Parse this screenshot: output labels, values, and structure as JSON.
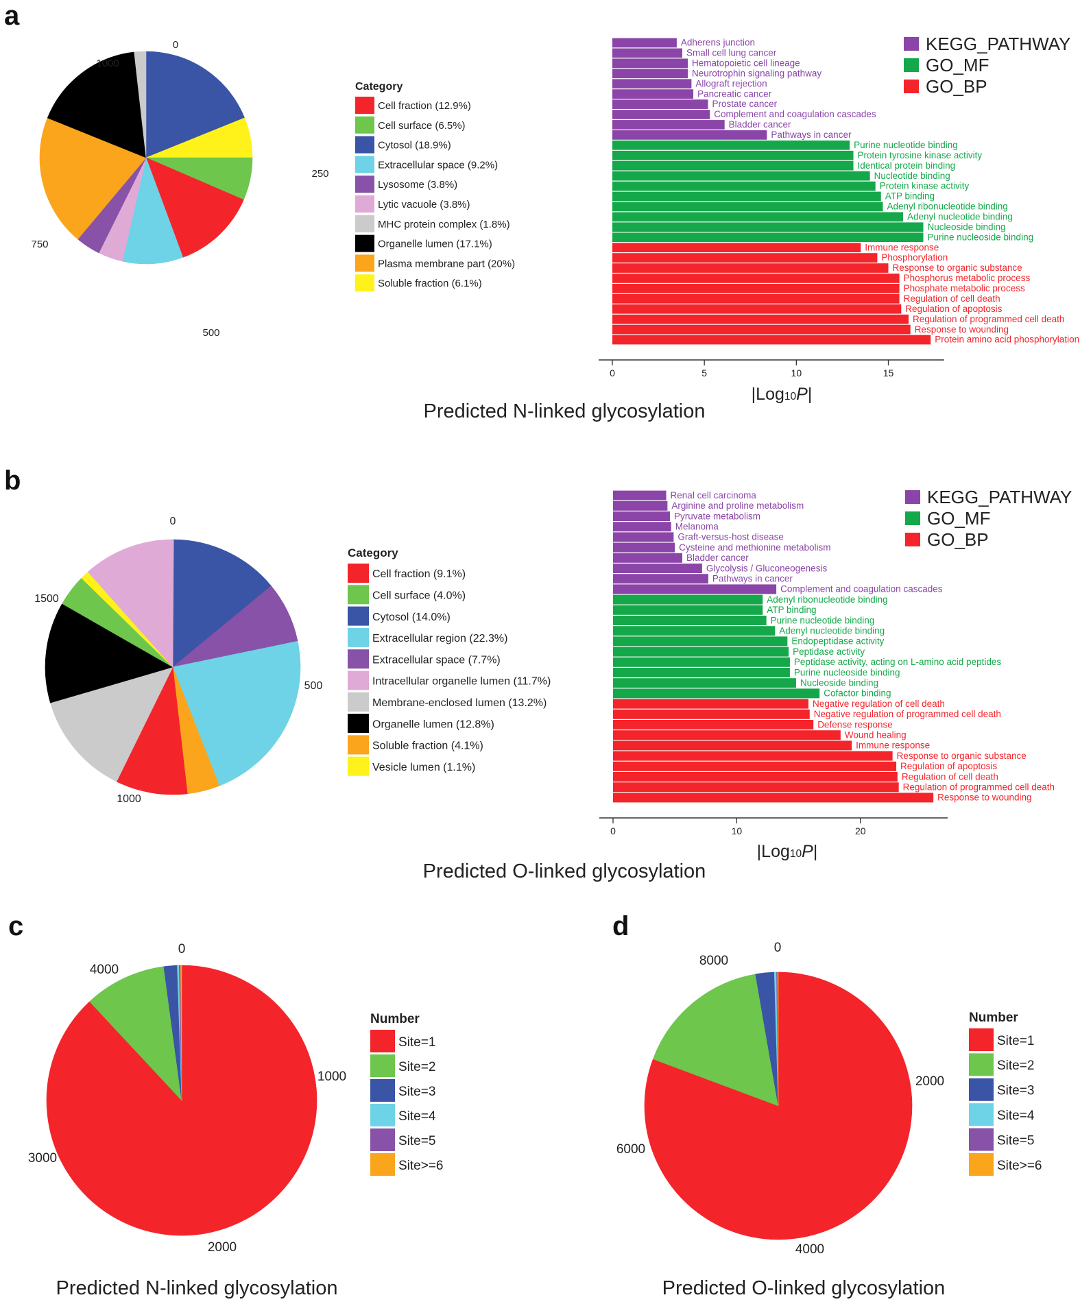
{
  "colors": {
    "red": "#f4242b",
    "green": "#6ec64d",
    "blue": "#3a54a6",
    "cyan": "#6ed3e6",
    "purple": "#8752a8",
    "pink": "#e0aad6",
    "grey": "#cbcbcb",
    "black": "#000000",
    "orange": "#faa51c",
    "yellow": "#fff21b",
    "kegg": "#8b45a8",
    "go_mf": "#15a84a",
    "go_bp": "#f4242b"
  },
  "panel_labels": [
    "a",
    "b",
    "c",
    "d"
  ],
  "series_legend": [
    {
      "name": "KEGG_PATHWAY",
      "color": "#8b45a8"
    },
    {
      "name": "GO_MF",
      "color": "#15a84a"
    },
    {
      "name": "GO_BP",
      "color": "#f4242b"
    }
  ],
  "chart_data": [
    {
      "id": "a-pie",
      "type": "pie",
      "title": "Predicted N-linked glycosylation",
      "legend_title": "Category",
      "axis_max": 1064,
      "tick_labels": [
        {
          "value": 0,
          "label": "0"
        },
        {
          "value": 250,
          "label": "250"
        },
        {
          "value": 500,
          "label": "500"
        },
        {
          "value": 750,
          "label": "750"
        },
        {
          "value": 1000,
          "label": "1000"
        }
      ],
      "slices": [
        {
          "name": "Cytosol (18.9%)",
          "value": 201,
          "color": "#3a54a6"
        },
        {
          "name": "Soluble fraction (6.1%)",
          "value": 65,
          "color": "#fff21b"
        },
        {
          "name": "Cell surface (6.5%)",
          "value": 69,
          "color": "#6ec64d"
        },
        {
          "name": "Cell fraction (12.9%)",
          "value": 137,
          "color": "#f4242b"
        },
        {
          "name": "Extracellular space (9.2%)",
          "value": 98,
          "color": "#6ed3e6"
        },
        {
          "name": "Lytic vacuole (3.8%)",
          "value": 40,
          "color": "#e0aad6"
        },
        {
          "name": "Lysosome (3.8%)",
          "value": 40,
          "color": "#8752a8"
        },
        {
          "name": "Plasma membrane part (20%)",
          "value": 213,
          "color": "#faa51c"
        },
        {
          "name": "Organelle lumen (17.1%)",
          "value": 182,
          "color": "#000000"
        },
        {
          "name": "MHC protein complex (1.8%)",
          "value": 19,
          "color": "#cbcbcb"
        }
      ],
      "legend": [
        {
          "label": "Cell fraction (12.9%)",
          "color": "#f4242b"
        },
        {
          "label": "Cell surface (6.5%)",
          "color": "#6ec64d"
        },
        {
          "label": "Cytosol (18.9%)",
          "color": "#3a54a6"
        },
        {
          "label": "Extracellular space (9.2%)",
          "color": "#6ed3e6"
        },
        {
          "label": "Lysosome (3.8%)",
          "color": "#8752a8"
        },
        {
          "label": "Lytic vacuole (3.8%)",
          "color": "#e0aad6"
        },
        {
          "label": "MHC protein complex (1.8%)",
          "color": "#cbcbcb"
        },
        {
          "label": "Organelle lumen (17.1%)",
          "color": "#000000"
        },
        {
          "label": "Plasma membrane part (20%)",
          "color": "#faa51c"
        },
        {
          "label": "Soluble fraction (6.1%)",
          "color": "#fff21b"
        }
      ]
    },
    {
      "id": "a-bar",
      "type": "bar",
      "orientation": "horizontal",
      "xlabel": "|Log10P|",
      "xlim": [
        0,
        18
      ],
      "xticks": [
        0,
        5,
        10,
        15
      ],
      "bars": [
        {
          "label": "Adherens junction",
          "value": 3.5,
          "group": "KEGG_PATHWAY"
        },
        {
          "label": "Small cell lung cancer",
          "value": 3.8,
          "group": "KEGG_PATHWAY"
        },
        {
          "label": "Hematopoietic cell lineage",
          "value": 4.1,
          "group": "KEGG_PATHWAY"
        },
        {
          "label": "Neurotrophin signaling pathway",
          "value": 4.1,
          "group": "KEGG_PATHWAY"
        },
        {
          "label": "Allograft rejection",
          "value": 4.3,
          "group": "KEGG_PATHWAY"
        },
        {
          "label": "Pancreatic cancer",
          "value": 4.4,
          "group": "KEGG_PATHWAY"
        },
        {
          "label": "Prostate cancer",
          "value": 5.2,
          "group": "KEGG_PATHWAY"
        },
        {
          "label": "Complement and coagulation cascades",
          "value": 5.3,
          "group": "KEGG_PATHWAY"
        },
        {
          "label": "Bladder cancer",
          "value": 6.1,
          "group": "KEGG_PATHWAY"
        },
        {
          "label": "Pathways in cancer",
          "value": 8.4,
          "group": "KEGG_PATHWAY"
        },
        {
          "label": "Purine nucleotide binding",
          "value": 12.9,
          "group": "GO_MF"
        },
        {
          "label": "Protein tyrosine kinase activity",
          "value": 13.1,
          "group": "GO_MF"
        },
        {
          "label": "Identical protein binding",
          "value": 13.1,
          "group": "GO_MF"
        },
        {
          "label": "Nucleotide binding",
          "value": 14.0,
          "group": "GO_MF"
        },
        {
          "label": "Protein kinase activity",
          "value": 14.3,
          "group": "GO_MF"
        },
        {
          "label": "ATP binding",
          "value": 14.6,
          "group": "GO_MF"
        },
        {
          "label": "Adenyl ribonucleotide binding",
          "value": 14.7,
          "group": "GO_MF"
        },
        {
          "label": "Adenyl nucleotide binding",
          "value": 15.8,
          "group": "GO_MF"
        },
        {
          "label": "Nucleoside binding",
          "value": 16.9,
          "group": "GO_MF"
        },
        {
          "label": "Purine nucleoside binding",
          "value": 16.9,
          "group": "GO_MF"
        },
        {
          "label": "Immune response",
          "value": 13.5,
          "group": "GO_BP"
        },
        {
          "label": "Phosphorylation",
          "value": 14.4,
          "group": "GO_BP"
        },
        {
          "label": "Response to organic substance",
          "value": 15.0,
          "group": "GO_BP"
        },
        {
          "label": "Phosphorus metabolic process",
          "value": 15.6,
          "group": "GO_BP"
        },
        {
          "label": "Phosphate metabolic process",
          "value": 15.6,
          "group": "GO_BP"
        },
        {
          "label": "Regulation of cell death",
          "value": 15.6,
          "group": "GO_BP"
        },
        {
          "label": "Regulation of apoptosis",
          "value": 15.7,
          "group": "GO_BP"
        },
        {
          "label": "Regulation of programmed cell death",
          "value": 16.1,
          "group": "GO_BP"
        },
        {
          "label": "Response to wounding",
          "value": 16.2,
          "group": "GO_BP"
        },
        {
          "label": "Protein amino acid phosphorylation",
          "value": 17.3,
          "group": "GO_BP"
        }
      ]
    },
    {
      "id": "b-pie",
      "type": "pie",
      "title": "Predicted O-linked glycosylation",
      "legend_title": "Category",
      "axis_max": 1968,
      "tick_labels": [
        {
          "value": 0,
          "label": "0"
        },
        {
          "value": 500,
          "label": "500"
        },
        {
          "value": 1000,
          "label": "1000"
        },
        {
          "value": 1500,
          "label": "1500"
        }
      ],
      "slices": [
        {
          "name": "Cytosol (14.0%)",
          "value": 276,
          "color": "#3a54a6"
        },
        {
          "name": "Extracellular space (7.7%)",
          "value": 152,
          "color": "#8752a8"
        },
        {
          "name": "Extracellular region (22.3%)",
          "value": 439,
          "color": "#6ed3e6"
        },
        {
          "name": "Soluble fraction (4.1%)",
          "value": 81,
          "color": "#faa51c"
        },
        {
          "name": "Cell fraction (9.1%)",
          "value": 179,
          "color": "#f4242b"
        },
        {
          "name": "Membrane-enclosed lumen (13.2%)",
          "value": 260,
          "color": "#cbcbcb"
        },
        {
          "name": "Organelle lumen (12.8%)",
          "value": 252,
          "color": "#000000"
        },
        {
          "name": "Cell surface (4.0%)",
          "value": 79,
          "color": "#6ec64d"
        },
        {
          "name": "Vesicle lumen (1.1%)",
          "value": 22,
          "color": "#fff21b"
        },
        {
          "name": "Intracellular organelle lumen (11.7%)",
          "value": 230,
          "color": "#e0aad6"
        }
      ],
      "legend": [
        {
          "label": "Cell fraction (9.1%)",
          "color": "#f4242b"
        },
        {
          "label": "Cell surface (4.0%)",
          "color": "#6ec64d"
        },
        {
          "label": "Cytosol (14.0%)",
          "color": "#3a54a6"
        },
        {
          "label": "Extracellular region (22.3%)",
          "color": "#6ed3e6"
        },
        {
          "label": "Extracellular space (7.7%)",
          "color": "#8752a8"
        },
        {
          "label": "Intracellular organelle lumen (11.7%)",
          "color": "#e0aad6"
        },
        {
          "label": "Membrane-enclosed lumen (13.2%)",
          "color": "#cbcbcb"
        },
        {
          "label": "Organelle lumen (12.8%)",
          "color": "#000000"
        },
        {
          "label": "Soluble fraction (4.1%)",
          "color": "#faa51c"
        },
        {
          "label": "Vesicle lumen (1.1%)",
          "color": "#fff21b"
        }
      ]
    },
    {
      "id": "b-bar",
      "type": "bar",
      "orientation": "horizontal",
      "xlabel": "|Log10P|",
      "xlim": [
        0,
        27
      ],
      "xticks": [
        0,
        10,
        20
      ],
      "bars": [
        {
          "label": "Renal cell carcinoma",
          "value": 4.3,
          "group": "KEGG_PATHWAY"
        },
        {
          "label": "Arginine and proline metabolism",
          "value": 4.4,
          "group": "KEGG_PATHWAY"
        },
        {
          "label": "Pyruvate metabolism",
          "value": 4.6,
          "group": "KEGG_PATHWAY"
        },
        {
          "label": "Melanoma",
          "value": 4.7,
          "group": "KEGG_PATHWAY"
        },
        {
          "label": "Graft-versus-host disease",
          "value": 4.9,
          "group": "KEGG_PATHWAY"
        },
        {
          "label": "Cysteine and methionine metabolism",
          "value": 5.0,
          "group": "KEGG_PATHWAY"
        },
        {
          "label": "Bladder cancer",
          "value": 5.6,
          "group": "KEGG_PATHWAY"
        },
        {
          "label": "Glycolysis / Gluconeogenesis",
          "value": 7.2,
          "group": "KEGG_PATHWAY"
        },
        {
          "label": "Pathways in cancer",
          "value": 7.7,
          "group": "KEGG_PATHWAY"
        },
        {
          "label": "Complement and coagulation cascades",
          "value": 13.2,
          "group": "KEGG_PATHWAY"
        },
        {
          "label": "Adenyl ribonucleotide binding",
          "value": 12.1,
          "group": "GO_MF"
        },
        {
          "label": "ATP binding",
          "value": 12.1,
          "group": "GO_MF"
        },
        {
          "label": "Purine nucleotide binding",
          "value": 12.4,
          "group": "GO_MF"
        },
        {
          "label": "Adenyl nucleotide binding",
          "value": 13.1,
          "group": "GO_MF"
        },
        {
          "label": "Endopeptidase activity",
          "value": 14.1,
          "group": "GO_MF"
        },
        {
          "label": "Peptidase activity",
          "value": 14.2,
          "group": "GO_MF"
        },
        {
          "label": "Peptidase activity, acting on L-amino acid peptides",
          "value": 14.3,
          "group": "GO_MF"
        },
        {
          "label": "Purine nucleoside binding",
          "value": 14.3,
          "group": "GO_MF"
        },
        {
          "label": "Nucleoside binding",
          "value": 14.8,
          "group": "GO_MF"
        },
        {
          "label": "Cofactor binding",
          "value": 16.7,
          "group": "GO_MF"
        },
        {
          "label": "Negative regulation of cell death",
          "value": 15.8,
          "group": "GO_BP"
        },
        {
          "label": "Negative regulation of programmed cell death",
          "value": 15.9,
          "group": "GO_BP"
        },
        {
          "label": "Defense response",
          "value": 16.2,
          "group": "GO_BP"
        },
        {
          "label": "Wound healing",
          "value": 18.4,
          "group": "GO_BP"
        },
        {
          "label": "Immune response",
          "value": 19.3,
          "group": "GO_BP"
        },
        {
          "label": "Response to organic substance",
          "value": 22.6,
          "group": "GO_BP"
        },
        {
          "label": "Regulation of apoptosis",
          "value": 22.9,
          "group": "GO_BP"
        },
        {
          "label": "Regulation of cell death",
          "value": 23.0,
          "group": "GO_BP"
        },
        {
          "label": "Regulation of programmed cell death",
          "value": 23.1,
          "group": "GO_BP"
        },
        {
          "label": "Response to wounding",
          "value": 25.9,
          "group": "GO_BP"
        }
      ]
    },
    {
      "id": "c-pie",
      "type": "pie",
      "title": "Predicted N-linked glycosylation",
      "legend_title": "Number",
      "axis_max": 4380,
      "tick_labels": [
        {
          "value": 0,
          "label": "0"
        },
        {
          "value": 1000,
          "label": "1000"
        },
        {
          "value": 2000,
          "label": "2000"
        },
        {
          "value": 3000,
          "label": "3000"
        },
        {
          "value": 4000,
          "label": "4000"
        }
      ],
      "slices": [
        {
          "name": "Site=1",
          "value": 3857,
          "color": "#f4242b"
        },
        {
          "name": "Site=2",
          "value": 430,
          "color": "#6ec64d"
        },
        {
          "name": "Site=3",
          "value": 70,
          "color": "#3a54a6"
        },
        {
          "name": "Site=4",
          "value": 10,
          "color": "#6ed3e6"
        },
        {
          "name": "Site=5",
          "value": 7,
          "color": "#8752a8"
        },
        {
          "name": "Site>=6",
          "value": 6,
          "color": "#faa51c"
        }
      ],
      "legend": [
        {
          "label": "Site=1",
          "color": "#f4242b"
        },
        {
          "label": "Site=2",
          "color": "#6ec64d"
        },
        {
          "label": "Site=3",
          "color": "#3a54a6"
        },
        {
          "label": "Site=4",
          "color": "#6ed3e6"
        },
        {
          "label": "Site=5",
          "color": "#8752a8"
        },
        {
          "label": "Site>=6",
          "color": "#faa51c"
        }
      ]
    },
    {
      "id": "d-pie",
      "type": "pie",
      "title": "Predicted O-linked glycosylation",
      "legend_title": "Number",
      "axis_max": 9530,
      "tick_labels": [
        {
          "value": 0,
          "label": "0"
        },
        {
          "value": 2000,
          "label": "2000"
        },
        {
          "value": 4000,
          "label": "4000"
        },
        {
          "value": 6000,
          "label": "6000"
        },
        {
          "value": 8000,
          "label": "8000"
        }
      ],
      "slices": [
        {
          "name": "Site=1",
          "value": 7690,
          "color": "#f4242b"
        },
        {
          "name": "Site=2",
          "value": 1580,
          "color": "#6ec64d"
        },
        {
          "name": "Site=3",
          "value": 215,
          "color": "#3a54a6"
        },
        {
          "name": "Site=4",
          "value": 25,
          "color": "#6ed3e6"
        },
        {
          "name": "Site=5",
          "value": 12,
          "color": "#8752a8"
        },
        {
          "name": "Site>=6",
          "value": 8,
          "color": "#faa51c"
        }
      ],
      "legend": [
        {
          "label": "Site=1",
          "color": "#f4242b"
        },
        {
          "label": "Site=2",
          "color": "#6ec64d"
        },
        {
          "label": "Site=3",
          "color": "#3a54a6"
        },
        {
          "label": "Site=4",
          "color": "#6ed3e6"
        },
        {
          "label": "Site=5",
          "color": "#8752a8"
        },
        {
          "label": "Site>=6",
          "color": "#faa51c"
        }
      ]
    }
  ]
}
